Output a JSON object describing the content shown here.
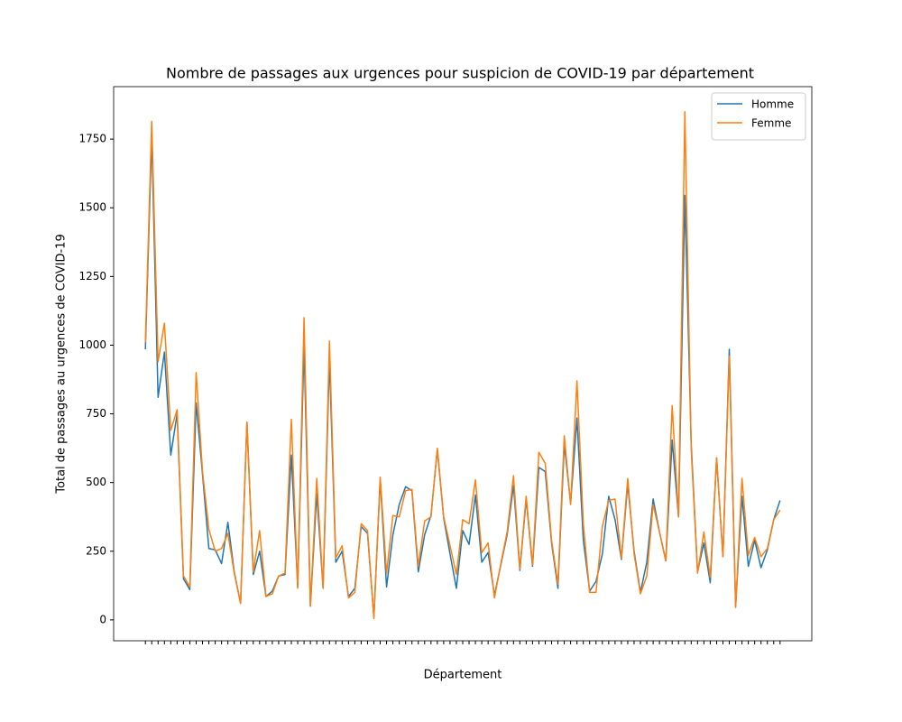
{
  "chart_data": {
    "type": "line",
    "title": "Nombre de passages aux urgences pour suspicion de COVID-19 par département",
    "x_label": "Département",
    "y_label": "Total de passages au urgences de COVID-19",
    "categories": [
      null,
      null,
      null,
      null,
      null,
      null,
      null,
      null,
      null,
      null,
      null,
      null,
      null,
      null,
      null,
      null,
      null,
      null,
      null,
      null,
      null,
      null,
      null,
      null,
      null,
      null,
      null,
      null,
      null,
      null,
      null,
      null,
      null,
      null,
      null,
      null,
      null,
      null,
      null,
      null,
      null,
      null,
      null,
      null,
      null,
      null,
      null,
      null,
      null,
      null,
      null,
      null,
      null,
      null,
      null,
      null,
      null,
      null,
      null,
      null,
      null,
      null,
      null,
      null,
      null,
      null,
      null,
      null,
      null,
      null,
      null,
      null,
      null,
      null,
      null,
      null,
      null,
      null,
      null,
      null,
      null,
      null,
      null,
      null,
      null,
      null,
      null,
      null,
      null,
      null,
      null,
      null,
      null,
      null,
      null,
      null,
      null,
      null,
      null,
      null,
      null
    ],
    "series": [
      {
        "name": "Homme",
        "color": "#1f77b4",
        "values": [
          985,
          1760,
          810,
          975,
          600,
          750,
          150,
          110,
          790,
          530,
          260,
          255,
          205,
          355,
          175,
          60,
          720,
          165,
          250,
          85,
          105,
          160,
          165,
          600,
          120,
          1000,
          50,
          460,
          115,
          950,
          210,
          250,
          85,
          115,
          340,
          315,
          10,
          510,
          120,
          310,
          420,
          485,
          470,
          175,
          310,
          380,
          620,
          370,
          240,
          115,
          325,
          275,
          455,
          210,
          245,
          90,
          200,
          310,
          490,
          180,
          440,
          195,
          555,
          540,
          280,
          115,
          640,
          425,
          735,
          290,
          105,
          140,
          240,
          450,
          365,
          220,
          495,
          250,
          100,
          210,
          440,
          320,
          215,
          655,
          375,
          1545,
          640,
          175,
          280,
          135,
          590,
          230,
          985,
          50,
          450,
          195,
          290,
          190,
          255,
          365,
          435
        ]
      },
      {
        "name": "Femme",
        "color": "#ff7f0e",
        "values": [
          1010,
          1815,
          940,
          1080,
          690,
          765,
          160,
          120,
          900,
          540,
          330,
          250,
          260,
          315,
          170,
          60,
          720,
          175,
          325,
          85,
          95,
          160,
          170,
          730,
          115,
          1100,
          50,
          515,
          115,
          1015,
          225,
          270,
          80,
          100,
          350,
          325,
          5,
          520,
          170,
          380,
          375,
          470,
          475,
          195,
          360,
          375,
          625,
          375,
          270,
          165,
          365,
          350,
          510,
          245,
          280,
          80,
          205,
          320,
          525,
          185,
          450,
          200,
          610,
          570,
          290,
          130,
          670,
          420,
          870,
          350,
          100,
          100,
          340,
          435,
          440,
          225,
          515,
          240,
          95,
          160,
          420,
          320,
          215,
          780,
          375,
          1850,
          620,
          170,
          320,
          155,
          590,
          230,
          960,
          45,
          515,
          235,
          300,
          230,
          260,
          365,
          400
        ]
      }
    ],
    "ylim": [
      -76,
      1941
    ],
    "yticks": [
      0,
      250,
      500,
      750,
      1000,
      1250,
      1500,
      1750
    ],
    "legend": "upper right"
  }
}
